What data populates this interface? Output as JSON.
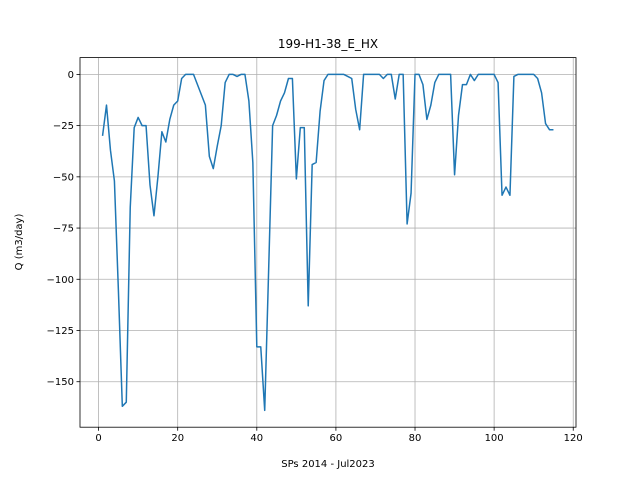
{
  "chart_data": {
    "type": "line",
    "title": "199-H1-38_E_HX",
    "xlabel": "SPs 2014 - Jul2023",
    "ylabel": "Q (m3/day)",
    "x": [
      1,
      2,
      3,
      4,
      5,
      6,
      7,
      8,
      9,
      10,
      11,
      12,
      13,
      14,
      15,
      16,
      17,
      18,
      19,
      20,
      21,
      22,
      23,
      24,
      25,
      26,
      27,
      28,
      29,
      30,
      31,
      32,
      33,
      34,
      35,
      36,
      37,
      38,
      39,
      40,
      41,
      42,
      43,
      44,
      45,
      46,
      47,
      48,
      49,
      50,
      51,
      52,
      53,
      54,
      55,
      56,
      57,
      58,
      59,
      60,
      61,
      62,
      63,
      64,
      65,
      66,
      67,
      68,
      69,
      70,
      71,
      72,
      73,
      74,
      75,
      76,
      77,
      78,
      79,
      80,
      81,
      82,
      83,
      84,
      85,
      86,
      87,
      88,
      89,
      90,
      91,
      92,
      93,
      94,
      95,
      96,
      97,
      98,
      99,
      100,
      101,
      102,
      103,
      104,
      105,
      106,
      107,
      108,
      109,
      110,
      111,
      112,
      113,
      114,
      115
    ],
    "series": [
      {
        "name": "Q",
        "color": "#1f77b4",
        "values": [
          -30,
          -15,
          -37,
          -52,
          -105,
          -162,
          -160,
          -65,
          -26,
          -21,
          -25,
          -25,
          -54,
          -69,
          -50,
          -28,
          -33,
          -22,
          -15,
          -13,
          -2,
          0,
          0,
          0,
          -5,
          -10,
          -15,
          -40,
          -46,
          -35,
          -25,
          -4,
          0,
          0,
          -1,
          0,
          0,
          -13,
          -43,
          -133,
          -133,
          -164,
          -95,
          -25,
          -20,
          -13,
          -9,
          -2,
          -2,
          -51,
          -26,
          -26,
          -113,
          -44,
          -43,
          -18,
          -3,
          0,
          0,
          0,
          0,
          0,
          -1,
          -2,
          -17,
          -27,
          0,
          0,
          0,
          0,
          0,
          -2,
          0,
          0,
          -12,
          0,
          0,
          -73,
          -58,
          0,
          0,
          -5,
          -22,
          -15,
          -4,
          0,
          0,
          0,
          0,
          -49,
          -20,
          -5,
          -5,
          0,
          -3,
          0,
          0,
          0,
          0,
          0,
          -4,
          -59,
          -55,
          -59,
          -1,
          0,
          0,
          0,
          0,
          0,
          -2,
          -9,
          -24,
          -27,
          -27
        ]
      }
    ],
    "xlim": [
      -4.7,
      120.7
    ],
    "ylim": [
      -172.2,
      8.2
    ],
    "xticks": [
      0,
      20,
      40,
      60,
      80,
      100,
      120
    ],
    "yticks": [
      {
        "value": -150,
        "label": "−150"
      },
      {
        "value": -125,
        "label": "−125"
      },
      {
        "value": -100,
        "label": "−100"
      },
      {
        "value": -75,
        "label": "−75"
      },
      {
        "value": -50,
        "label": "−50"
      },
      {
        "value": -25,
        "label": "−25"
      },
      0
    ],
    "grid": true
  }
}
